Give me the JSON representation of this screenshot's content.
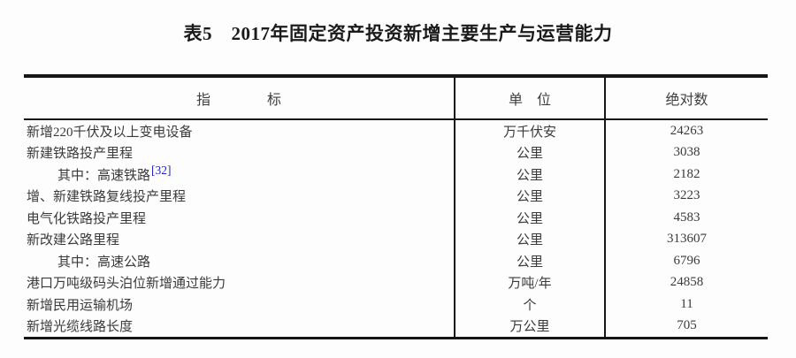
{
  "page": {
    "title": "表5　2017年固定资产投资新增主要生产与运营能力",
    "background_color": "#fdfdfd",
    "border_color": "#161616",
    "text_color": "#3a3a3a",
    "link_color": "#2323c8"
  },
  "table": {
    "headers": {
      "indicator": "指　　　　标",
      "unit": "单　位",
      "value": "绝对数"
    },
    "rows": [
      {
        "indicator": "新增220千伏及以上变电设备",
        "unit": "万千伏安",
        "value": "24263"
      },
      {
        "indicator": "新建铁路投产里程",
        "unit": "公里",
        "value": "3038"
      },
      {
        "indicator": "其中：高速铁路",
        "ref": "[32]",
        "unit": "公里",
        "value": "2182"
      },
      {
        "indicator": "增、新建铁路复线投产里程",
        "unit": "公里",
        "value": "3223"
      },
      {
        "indicator": "电气化铁路投产里程",
        "unit": "公里",
        "value": "4583"
      },
      {
        "indicator": "新改建公路里程",
        "unit": "公里",
        "value": "313607"
      },
      {
        "indicator": "其中：高速公路",
        "unit": "公里",
        "value": "6796"
      },
      {
        "indicator": "港口万吨级码头泊位新增通过能力",
        "unit": "万吨/年",
        "value": "24858"
      },
      {
        "indicator": "新增民用运输机场",
        "unit": "个",
        "value": "11"
      },
      {
        "indicator": "新增光缆线路长度",
        "unit": "万公里",
        "value": "705"
      }
    ]
  }
}
